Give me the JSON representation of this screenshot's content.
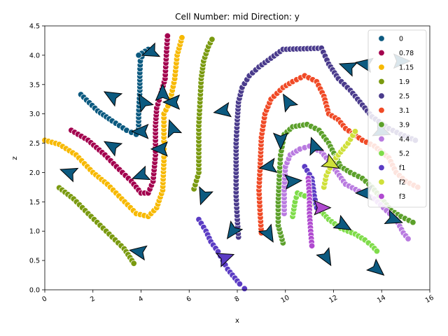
{
  "chart_data": {
    "type": "scatter",
    "title": "Cell Number: mid Direction: y",
    "xlabel": "x",
    "ylabel": "z",
    "xlim": [
      0,
      16
    ],
    "ylim": [
      0,
      4.5
    ],
    "x_ticks": [
      "0",
      "2",
      "4",
      "6",
      "8",
      "10",
      "12",
      "14",
      "16"
    ],
    "y_ticks": [
      "0.0",
      "0.5",
      "1.0",
      "1.5",
      "2.0",
      "2.5",
      "3.0",
      "3.5",
      "4.0",
      "4.5"
    ],
    "grid": false,
    "legend_position": "top-right",
    "legend": [
      {
        "label": "0",
        "color": "#0c5a80"
      },
      {
        "label": "0.78",
        "color": "#a3004e"
      },
      {
        "label": "1.15",
        "color": "#f7b900"
      },
      {
        "label": "1.9",
        "color": "#7a9a10"
      },
      {
        "label": "2.5",
        "color": "#4a3b8c"
      },
      {
        "label": "3.1",
        "color": "#f04a26"
      },
      {
        "label": "3.9",
        "color": "#5ca02b"
      },
      {
        "label": "4.4",
        "color": "#b97be0"
      },
      {
        "label": "5.2",
        "color": "#7fdc4a"
      },
      {
        "label": "f1",
        "color": "#5b3cc4"
      },
      {
        "label": "f2",
        "color": "#cfe03a"
      },
      {
        "label": "f3",
        "color": "#b04ad0"
      }
    ],
    "series": [
      {
        "name": "0",
        "color": "#0c5a80",
        "points": [
          [
            1.5,
            3.33
          ],
          [
            2.2,
            3.05
          ],
          [
            2.8,
            2.88
          ],
          [
            3.4,
            2.72
          ],
          [
            3.8,
            2.65
          ],
          [
            3.9,
            2.75
          ],
          [
            3.9,
            3.0
          ],
          [
            3.95,
            3.4
          ],
          [
            3.95,
            3.7
          ],
          [
            3.97,
            3.9
          ],
          [
            4.1,
            4.05
          ],
          [
            4.3,
            4.1
          ],
          [
            3.9,
            4.0
          ]
        ]
      },
      {
        "name": "0.78",
        "color": "#a3004e",
        "points": [
          [
            1.1,
            2.72
          ],
          [
            1.8,
            2.55
          ],
          [
            2.5,
            2.3
          ],
          [
            3.1,
            2.05
          ],
          [
            3.6,
            1.85
          ],
          [
            4.0,
            1.65
          ],
          [
            4.3,
            1.65
          ],
          [
            4.5,
            1.85
          ],
          [
            4.6,
            2.3
          ],
          [
            4.6,
            2.8
          ],
          [
            4.65,
            3.1
          ],
          [
            4.8,
            3.3
          ],
          [
            5.0,
            3.6
          ],
          [
            5.05,
            4.0
          ],
          [
            5.1,
            4.33
          ]
        ]
      },
      {
        "name": "1.15",
        "color": "#f7b900",
        "points": [
          [
            0.0,
            2.55
          ],
          [
            0.6,
            2.48
          ],
          [
            1.3,
            2.3
          ],
          [
            2.0,
            2.0
          ],
          [
            2.6,
            1.8
          ],
          [
            3.2,
            1.55
          ],
          [
            3.8,
            1.3
          ],
          [
            4.3,
            1.25
          ],
          [
            4.65,
            1.4
          ],
          [
            4.9,
            1.7
          ],
          [
            4.95,
            2.2
          ],
          [
            4.95,
            2.6
          ],
          [
            4.95,
            3.0
          ],
          [
            5.2,
            3.2
          ],
          [
            5.4,
            3.6
          ],
          [
            5.5,
            4.0
          ],
          [
            5.7,
            4.3
          ]
        ]
      },
      {
        "name": "1.9",
        "color": "#7a9a10",
        "points": [
          [
            0.6,
            1.74
          ],
          [
            1.2,
            1.55
          ],
          [
            1.8,
            1.3
          ],
          [
            2.3,
            1.1
          ],
          [
            2.8,
            0.9
          ],
          [
            3.3,
            0.7
          ],
          [
            3.7,
            0.45
          ],
          [
            6.2,
            1.72
          ],
          [
            6.4,
            2.0
          ],
          [
            6.4,
            2.4
          ],
          [
            6.4,
            2.8
          ],
          [
            6.45,
            3.2
          ],
          [
            6.5,
            3.6
          ],
          [
            6.6,
            3.9
          ],
          [
            6.8,
            4.15
          ],
          [
            6.95,
            4.27
          ]
        ]
      },
      {
        "name": "2.5",
        "color": "#4a3b8c",
        "points": [
          [
            8.05,
            0.9
          ],
          [
            8.0,
            1.2
          ],
          [
            7.95,
            1.6
          ],
          [
            7.95,
            2.0
          ],
          [
            7.95,
            2.5
          ],
          [
            8.0,
            2.9
          ],
          [
            8.05,
            3.2
          ],
          [
            8.2,
            3.45
          ],
          [
            8.5,
            3.65
          ],
          [
            8.9,
            3.8
          ],
          [
            9.4,
            3.95
          ],
          [
            9.9,
            4.1
          ],
          [
            11.5,
            4.12
          ],
          [
            11.8,
            3.85
          ],
          [
            12.2,
            3.6
          ],
          [
            12.7,
            3.4
          ],
          [
            13.2,
            3.15
          ],
          [
            13.6,
            2.95
          ],
          [
            14.3,
            2.75
          ],
          [
            14.8,
            2.65
          ],
          [
            15.4,
            2.55
          ]
        ]
      },
      {
        "name": "3.1",
        "color": "#f04a26",
        "points": [
          [
            9.0,
            0.97
          ],
          [
            8.95,
            1.3
          ],
          [
            8.9,
            1.7
          ],
          [
            8.95,
            2.1
          ],
          [
            9.0,
            2.6
          ],
          [
            9.15,
            3.0
          ],
          [
            9.4,
            3.25
          ],
          [
            9.9,
            3.45
          ],
          [
            10.3,
            3.55
          ],
          [
            10.8,
            3.65
          ],
          [
            11.3,
            3.55
          ],
          [
            11.6,
            3.3
          ],
          [
            11.8,
            3.0
          ],
          [
            12.2,
            2.9
          ],
          [
            12.5,
            2.75
          ],
          [
            13.2,
            2.55
          ],
          [
            13.7,
            2.45
          ],
          [
            14.3,
            2.25
          ],
          [
            14.6,
            2.0
          ],
          [
            15.0,
            1.85
          ],
          [
            15.5,
            1.75
          ]
        ]
      },
      {
        "name": "3.9",
        "color": "#5ca02b",
        "points": [
          [
            9.9,
            0.8
          ],
          [
            9.7,
            1.1
          ],
          [
            9.7,
            1.5
          ],
          [
            9.75,
            1.95
          ],
          [
            9.8,
            2.3
          ],
          [
            9.95,
            2.65
          ],
          [
            10.3,
            2.78
          ],
          [
            10.9,
            2.82
          ],
          [
            11.4,
            2.72
          ],
          [
            11.8,
            2.5
          ],
          [
            12.3,
            2.1
          ],
          [
            12.7,
            2.0
          ],
          [
            13.2,
            1.9
          ],
          [
            13.6,
            1.75
          ],
          [
            14.0,
            1.55
          ],
          [
            14.4,
            1.35
          ],
          [
            14.8,
            1.25
          ],
          [
            15.3,
            1.15
          ]
        ]
      },
      {
        "name": "4.4",
        "color": "#b97be0",
        "points": [
          [
            9.95,
            1.3
          ],
          [
            9.95,
            1.7
          ],
          [
            10.0,
            2.1
          ],
          [
            10.2,
            2.3
          ],
          [
            10.6,
            2.4
          ],
          [
            11.0,
            2.45
          ],
          [
            11.5,
            2.35
          ],
          [
            11.8,
            2.2
          ],
          [
            12.5,
            1.8
          ],
          [
            13.2,
            1.65
          ],
          [
            13.7,
            1.55
          ],
          [
            14.2,
            1.35
          ],
          [
            14.6,
            1.2
          ],
          [
            14.9,
            0.97
          ],
          [
            15.1,
            0.87
          ]
        ]
      },
      {
        "name": "5.2",
        "color": "#7fdc4a",
        "points": [
          [
            10.3,
            1.25
          ],
          [
            10.4,
            1.5
          ],
          [
            10.5,
            1.65
          ],
          [
            10.8,
            1.6
          ],
          [
            11.0,
            1.55
          ],
          [
            11.8,
            1.2
          ],
          [
            12.3,
            1.05
          ],
          [
            12.9,
            0.95
          ],
          [
            13.3,
            0.85
          ],
          [
            13.6,
            0.75
          ],
          [
            13.8,
            0.66
          ]
        ]
      },
      {
        "name": "f1",
        "color": "#5b3cc4",
        "points": [
          [
            6.4,
            1.2
          ],
          [
            6.7,
            1.0
          ],
          [
            6.9,
            0.82
          ],
          [
            7.2,
            0.65
          ],
          [
            7.4,
            0.5
          ],
          [
            7.6,
            0.35
          ],
          [
            7.9,
            0.2
          ],
          [
            8.1,
            0.1
          ],
          [
            8.3,
            0.02
          ],
          [
            10.8,
            2.1
          ],
          [
            11.1,
            1.9
          ],
          [
            11.2,
            1.6
          ],
          [
            11.3,
            1.4
          ]
        ]
      },
      {
        "name": "f2",
        "color": "#cfe03a",
        "points": [
          [
            11.6,
            1.75
          ],
          [
            11.7,
            1.95
          ],
          [
            12.0,
            2.2
          ],
          [
            12.3,
            2.35
          ],
          [
            12.6,
            2.5
          ],
          [
            12.9,
            2.7
          ]
        ]
      },
      {
        "name": "f3",
        "color": "#b04ad0",
        "points": [
          [
            10.95,
            1.9
          ],
          [
            11.0,
            1.6
          ],
          [
            11.0,
            1.3
          ],
          [
            11.05,
            1.0
          ],
          [
            11.1,
            0.75
          ]
        ]
      }
    ],
    "arrows": [
      {
        "x": 1.0,
        "y": 2.0,
        "dir": 160
      },
      {
        "x": 2.8,
        "y": 2.45,
        "dir": 150
      },
      {
        "x": 2.8,
        "y": 3.3,
        "dir": 150
      },
      {
        "x": 4.1,
        "y": 3.2,
        "dir": 120
      },
      {
        "x": 4.9,
        "y": 3.35,
        "dir": 90
      },
      {
        "x": 4.4,
        "y": 4.05,
        "dir": 200
      },
      {
        "x": 5.3,
        "y": 3.2,
        "dir": 180
      },
      {
        "x": 5.3,
        "y": 2.75,
        "dir": 110
      },
      {
        "x": 4.8,
        "y": 2.4,
        "dir": 180
      },
      {
        "x": 4.0,
        "y": 2.7,
        "dir": 180
      },
      {
        "x": 4.0,
        "y": 1.95,
        "dir": 200
      },
      {
        "x": 3.9,
        "y": 0.65,
        "dir": 170
      },
      {
        "x": 6.6,
        "y": 1.6,
        "dir": 250
      },
      {
        "x": 7.4,
        "y": 3.05,
        "dir": 190
      },
      {
        "x": 7.8,
        "y": 1.0,
        "dir": 235
      },
      {
        "x": 7.5,
        "y": 0.55,
        "dir": 20
      },
      {
        "x": 9.3,
        "y": 0.95,
        "dir": 300
      },
      {
        "x": 9.3,
        "y": 2.1,
        "dir": 190
      },
      {
        "x": 9.8,
        "y": 2.55,
        "dir": 270
      },
      {
        "x": 10.1,
        "y": 3.2,
        "dir": 120
      },
      {
        "x": 10.3,
        "y": 1.85,
        "dir": 5
      },
      {
        "x": 11.2,
        "y": 2.45,
        "dir": 110
      },
      {
        "x": 11.9,
        "y": 2.15,
        "dir": 330
      },
      {
        "x": 11.5,
        "y": 1.4,
        "dir": 0
      },
      {
        "x": 11.7,
        "y": 0.55,
        "dir": 300
      },
      {
        "x": 12.4,
        "y": 1.1,
        "dir": 330
      },
      {
        "x": 12.6,
        "y": 3.8,
        "dir": 160
      },
      {
        "x": 13.3,
        "y": 3.85,
        "dir": 170
      },
      {
        "x": 13.3,
        "y": 1.65,
        "dir": 180
      },
      {
        "x": 13.8,
        "y": 0.35,
        "dir": 320
      },
      {
        "x": 14.0,
        "y": 2.7,
        "dir": 340
      },
      {
        "x": 14.5,
        "y": 1.2,
        "dir": 340
      },
      {
        "x": 14.8,
        "y": 3.9,
        "dir": 0
      }
    ]
  }
}
